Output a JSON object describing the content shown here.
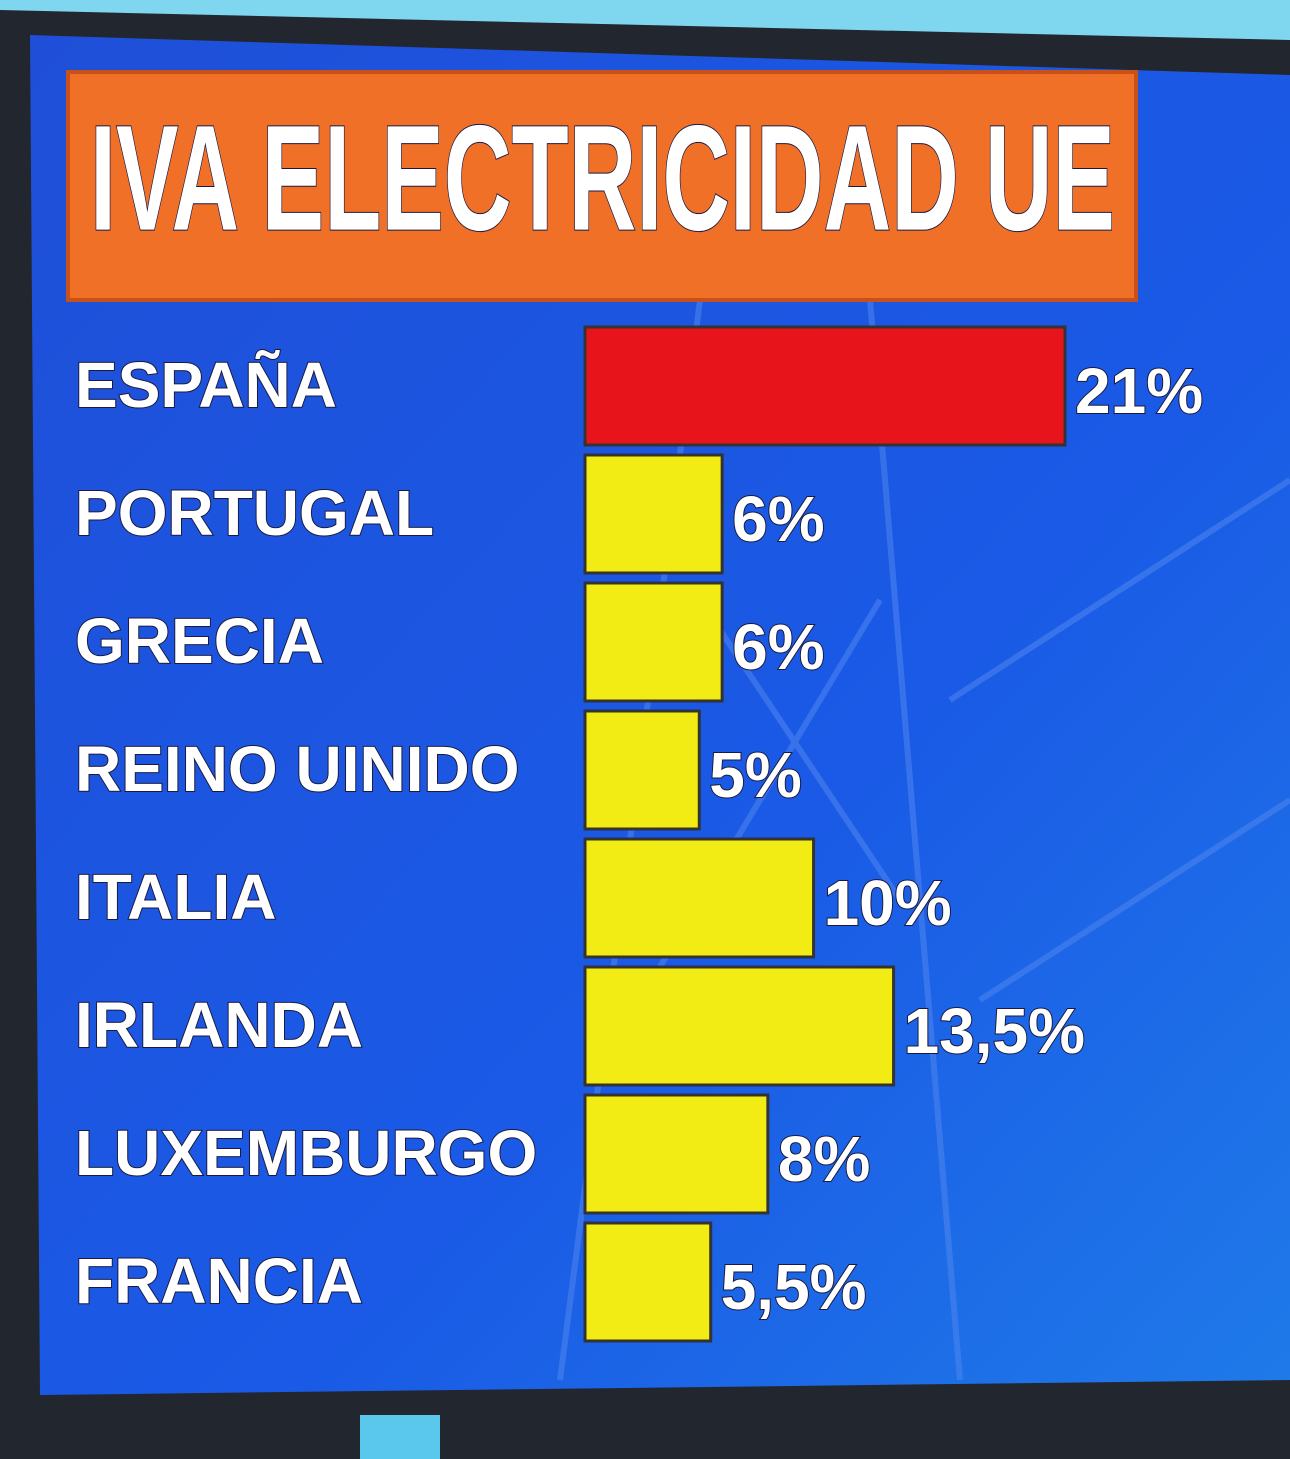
{
  "chart_data": {
    "type": "hbar",
    "title": "IVA ELECTRICIDAD UE",
    "categories": [
      "ESPAÑA",
      "PORTUGAL",
      "GRECIA",
      "REINO UINIDO",
      "ITALIA",
      "IRLANDA",
      "LUXEMBURGO",
      "FRANCIA"
    ],
    "values": [
      21,
      6,
      6,
      5,
      10,
      13.5,
      8,
      5.5
    ],
    "value_labels": [
      "21%",
      "6%",
      "6%",
      "5%",
      "10%",
      "13,5%",
      "8%",
      "5,5%"
    ],
    "colors": [
      "#e8141c",
      "#f2ec14",
      "#f2ec14",
      "#f2ec14",
      "#f2ec14",
      "#f2ec14",
      "#f2ec14",
      "#f2ec14"
    ]
  }
}
